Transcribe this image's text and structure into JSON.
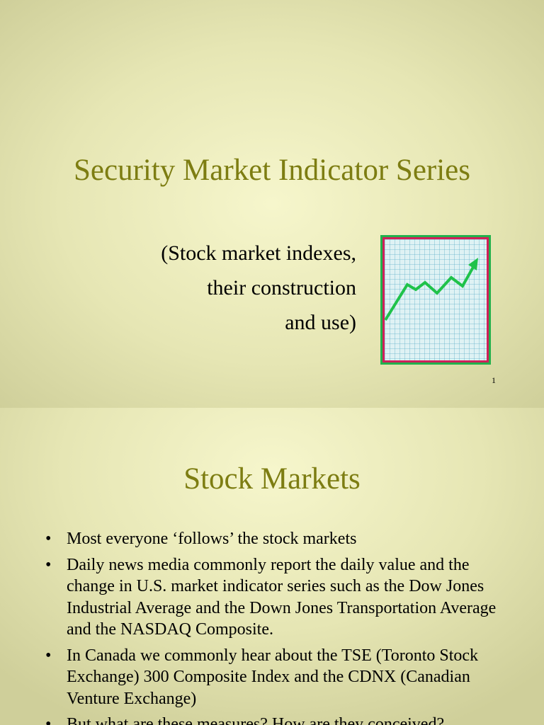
{
  "slides": [
    {
      "title": "Security Market Indicator Series",
      "subtitle_lines": [
        "(Stock market indexes,",
        "their construction",
        "and use)"
      ],
      "page_number": "1"
    },
    {
      "title": "Stock Markets",
      "bullets": [
        "Most everyone ‘follows’ the stock markets",
        "Daily news media commonly report the daily value and the change in U.S. market indicator series such as the Dow Jones Industrial Average and the Down Jones Transportation Average and the NASDAQ Composite.",
        "In Canada we commonly hear about the TSE (Toronto Stock Exchange) 300 Composite Index and the CDNX (Canadian Venture Exchange)",
        "But what are these measures? How are they conceived?"
      ]
    }
  ]
}
